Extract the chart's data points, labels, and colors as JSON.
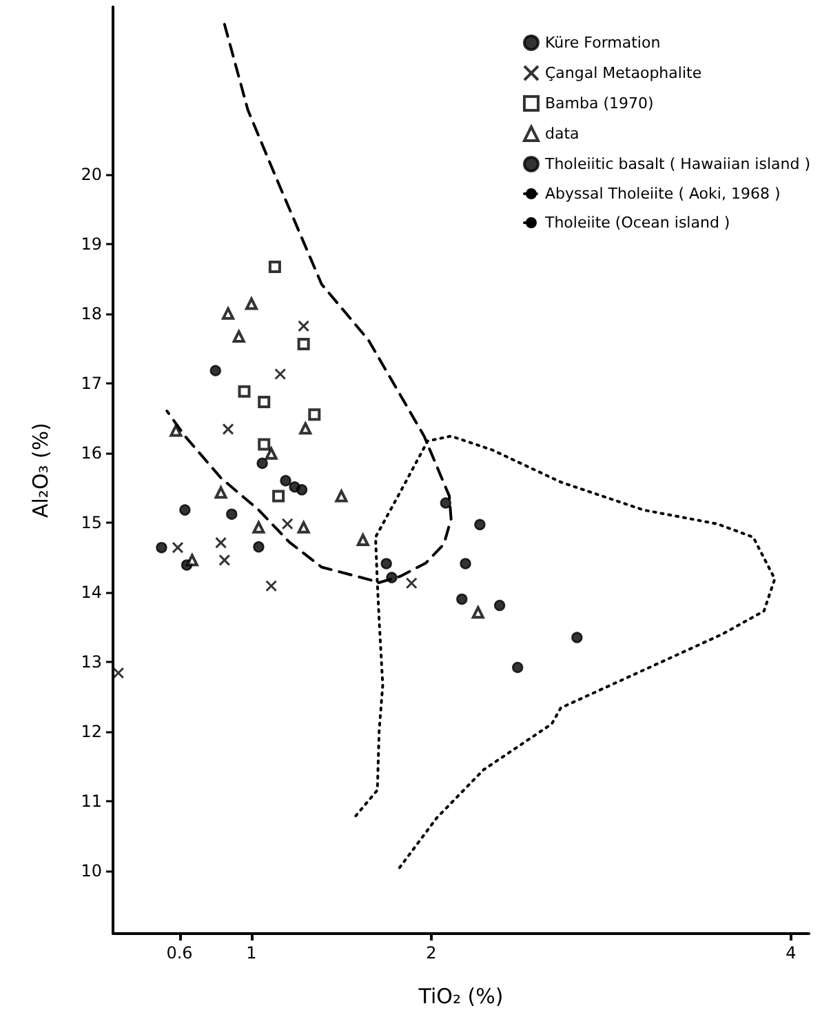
{
  "chart_data": {
    "type": "scatter",
    "xlabel": "TiO₂ (%)",
    "ylabel": "Al₂O₃ (%)",
    "xlim": [
      0.23,
      4.1
    ],
    "ylim": [
      9.1,
      22.4
    ],
    "xticks": [
      0.6,
      1,
      2,
      4
    ],
    "yticks": [
      10,
      11,
      12,
      13,
      14,
      15,
      16,
      17,
      18,
      19,
      20
    ],
    "grid": false,
    "legend": "top right",
    "series": [
      {
        "name": "Küre Formation",
        "color": "#000000",
        "marker": "circle",
        "x": [
          0.8,
          1.06,
          1.19,
          1.24,
          1.28,
          0.63,
          0.89,
          0.5,
          0.64,
          1.04,
          1.75,
          1.78
        ],
        "values": [
          17.18,
          15.85,
          15.6,
          15.51,
          15.47,
          15.18,
          15.12,
          14.64,
          14.39,
          14.65,
          14.41,
          14.21
        ]
      },
      {
        "name": "Çangal Metaophalite",
        "color": "#000000",
        "marker": "cross",
        "x": [
          1.29,
          1.16,
          0.87,
          1.2,
          0.83,
          0.59,
          0.85,
          1.11,
          1.89,
          0.26
        ],
        "values": [
          17.82,
          17.13,
          16.34,
          14.98,
          14.71,
          14.64,
          14.46,
          14.09,
          14.13,
          12.84
        ]
      },
      {
        "name": "Bamba (1970)",
        "color": "#000000",
        "marker": "square",
        "x": [
          1.13,
          1.29,
          0.96,
          1.07,
          1.35,
          1.07,
          1.15
        ],
        "values": [
          18.67,
          17.56,
          16.88,
          16.73,
          16.55,
          16.12,
          15.38
        ]
      },
      {
        "name": "data",
        "color": "#000000",
        "marker": "triangle",
        "x": [
          1.0,
          0.87,
          0.93,
          0.58,
          1.3,
          1.11,
          0.83,
          1.5,
          1.04,
          1.29,
          0.67,
          1.62,
          2.26
        ],
        "values": [
          18.14,
          18.0,
          17.67,
          16.32,
          16.35,
          15.99,
          15.43,
          15.38,
          14.93,
          14.93,
          14.46,
          14.75,
          13.71
        ]
      },
      {
        "name": "Tholeiitic basalt ( Hawaiian island )",
        "color": "#000000",
        "marker": "circle",
        "x": [
          2.08,
          2.27,
          2.19,
          2.17,
          2.38,
          2.81,
          2.48
        ],
        "values": [
          15.28,
          14.97,
          14.41,
          13.9,
          13.81,
          13.35,
          12.92
        ]
      },
      {
        "name": "Abyssal Tholeiite ( Aoki, 1968 )",
        "type": "line",
        "color": "#000000",
        "line_style": "dashed",
        "marker": "none",
        "x": [
          0.85,
          0.98,
          1.14,
          1.39,
          1.65,
          1.96,
          2.1,
          2.11,
          2.07,
          1.97,
          1.83,
          1.7,
          1.67,
          1.39,
          1.21,
          1.04,
          0.83,
          0.63,
          0.53
        ],
        "values": [
          22.15,
          20.92,
          19.93,
          18.42,
          17.62,
          16.24,
          15.38,
          15.05,
          14.69,
          14.42,
          14.23,
          14.13,
          14.17,
          14.36,
          14.72,
          15.18,
          15.64,
          16.24,
          16.6
        ]
      },
      {
        "name": "Tholeiite (Ocean island )",
        "type": "line",
        "color": "#000000",
        "line_style": "dotted",
        "marker": "none",
        "x": [
          1.58,
          1.7,
          1.71,
          1.73,
          1.71,
          1.7,
          1.69,
          1.83,
          1.98,
          2.11,
          2.34,
          2.72,
          3.18,
          3.59,
          3.79,
          3.91,
          3.85,
          3.62,
          3.23,
          2.72,
          2.67,
          2.29,
          2.03,
          1.81
        ],
        "values": [
          10.79,
          11.16,
          12.01,
          12.67,
          13.6,
          14.13,
          14.79,
          15.45,
          16.17,
          16.24,
          16.04,
          15.58,
          15.18,
          14.98,
          14.79,
          14.19,
          13.73,
          13.4,
          12.94,
          12.34,
          12.11,
          11.45,
          10.76,
          10.0
        ]
      }
    ]
  }
}
